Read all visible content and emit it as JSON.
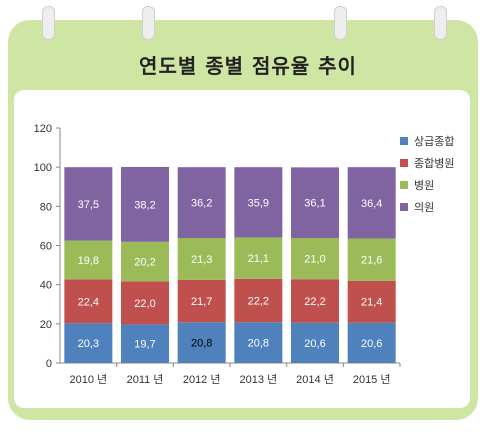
{
  "chart_data": {
    "type": "bar",
    "stacked": true,
    "title": "연도별 종별 점유율 추이",
    "categories": [
      "2010 년",
      "2011 년",
      "2012 년",
      "2013 년",
      "2014 년",
      "2015 년"
    ],
    "ylim": [
      0,
      120
    ],
    "yticks": [
      "0",
      "20",
      "40",
      "60",
      "80",
      "100",
      "120"
    ],
    "grid": false,
    "legend_position": "right",
    "series": [
      {
        "name": "상급종합",
        "color": "#4f81bd",
        "values": [
          20.3,
          19.7,
          20.8,
          20.8,
          20.6,
          20.6
        ],
        "labels": [
          "20,3",
          "19,7",
          "20,8",
          "20,8",
          "20,6",
          "20,6"
        ]
      },
      {
        "name": "종합병원",
        "color": "#c0504d",
        "values": [
          22.4,
          22.0,
          21.7,
          22.2,
          22.2,
          21.4
        ],
        "labels": [
          "22,4",
          "22,0",
          "21,7",
          "22,2",
          "22,2",
          "21,4"
        ]
      },
      {
        "name": "병원",
        "color": "#9bbb59",
        "values": [
          19.8,
          20.2,
          21.3,
          21.1,
          21.0,
          21.6
        ],
        "labels": [
          "19,8",
          "20,2",
          "21,3",
          "21,1",
          "21,0",
          "21,6"
        ]
      },
      {
        "name": "의원",
        "color": "#8064a2",
        "values": [
          37.5,
          38.2,
          36.2,
          35.9,
          36.1,
          36.4
        ],
        "labels": [
          "37,5",
          "38,2",
          "36,2",
          "35,9",
          "36,1",
          "36,4"
        ]
      }
    ]
  }
}
